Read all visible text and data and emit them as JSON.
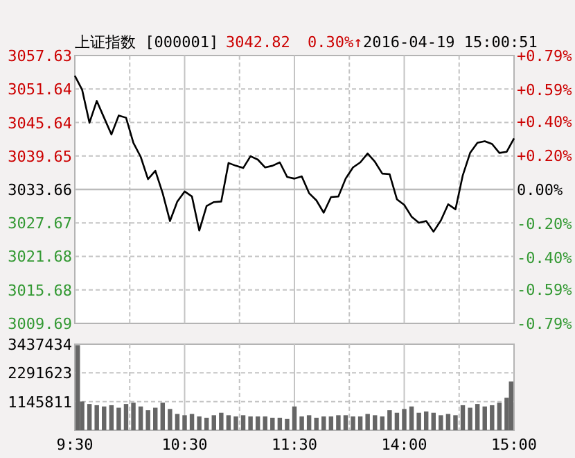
{
  "chart_data": [
    {
      "type": "line",
      "title": "上证指数 [000001]",
      "annotations": [
        "3042.82",
        "0.30%↑",
        "2016-04-19 15:00:51"
      ],
      "categories": [
        null,
        null,
        null,
        null,
        null,
        null,
        null,
        null,
        null,
        null,
        null,
        null,
        null,
        null,
        null,
        null,
        null,
        null,
        null,
        null,
        null,
        null,
        null,
        null,
        null,
        null,
        null,
        null,
        null,
        null,
        null,
        null,
        null,
        null,
        null,
        null,
        null,
        null,
        null,
        null,
        null,
        null,
        null,
        null,
        null,
        null,
        null,
        null,
        null,
        null,
        null,
        null,
        null,
        null,
        null,
        null,
        null,
        null,
        null,
        null,
        null
      ],
      "ylim": [
        3009.69,
        3057.63
      ],
      "yticks": [
        3009.69,
        3015.68,
        3021.68,
        3027.67,
        3033.66,
        3039.65,
        3045.64,
        3051.64,
        3057.63
      ],
      "y2lim": [
        -0.79,
        0.79
      ],
      "y2ticks": [
        {
          "value": -0.79,
          "label": "-0.79%"
        },
        {
          "value": -0.59,
          "label": "-0.59%"
        },
        {
          "value": -0.4,
          "label": "-0.40%"
        },
        {
          "value": -0.2,
          "label": "-0.20%"
        },
        {
          "value": 0,
          "label": "0.00%"
        },
        {
          "value": 0.2,
          "label": "+0.20%"
        },
        {
          "value": 0.4,
          "label": "+0.40%"
        },
        {
          "value": 0.59,
          "label": "+0.59%"
        },
        {
          "value": 0.79,
          "label": "+0.79%"
        }
      ],
      "ref_lines": [
        {
          "axis": "y",
          "value": 3033.66,
          "color": "#bbbbbb"
        }
      ],
      "grid": true,
      "series": [
        {
          "color": "#000000",
          "values": [
            3054.0,
            3051.5,
            3045.6,
            3049.5,
            3046.5,
            3043.5,
            3046.9,
            3046.5,
            3042.0,
            3039.5,
            3035.5,
            3037.0,
            3033.0,
            3028.0,
            3031.5,
            3033.3,
            3032.4,
            3026.3,
            3030.7,
            3031.4,
            3031.5,
            3038.4,
            3037.9,
            3037.5,
            3039.6,
            3039.0,
            3037.6,
            3037.9,
            3038.5,
            3035.9,
            3035.6,
            3036.0,
            3033.0,
            3031.7,
            3029.5,
            3032.3,
            3032.4,
            3035.6,
            3037.6,
            3038.5,
            3040.1,
            3038.6,
            3036.5,
            3036.4,
            3031.9,
            3030.9,
            3028.8,
            3027.7,
            3028.0,
            3026.1,
            3028.1,
            3031.0,
            3030.1,
            3036.2,
            3040.2,
            3042.0,
            3042.3,
            3041.8,
            3040.2,
            3040.4,
            3042.8
          ]
        }
      ]
    },
    {
      "type": "bar",
      "categories": [
        "9:30",
        null,
        null,
        null,
        null,
        null,
        null,
        null,
        null,
        null,
        null,
        null,
        null,
        null,
        null,
        "10:30",
        null,
        null,
        null,
        null,
        null,
        null,
        null,
        null,
        null,
        null,
        null,
        null,
        null,
        null,
        "11:30",
        null,
        null,
        null,
        null,
        null,
        null,
        null,
        null,
        null,
        null,
        null,
        null,
        null,
        null,
        "14:00",
        null,
        null,
        null,
        null,
        null,
        null,
        null,
        null,
        null,
        null,
        null,
        null,
        null,
        null,
        "15:00"
      ],
      "ylim": [
        0,
        3437434
      ],
      "yticks": [
        {
          "value": 0,
          "label": null
        },
        1145811,
        2291623,
        3437434
      ],
      "grid": true,
      "series": [
        {
          "color": "#666666",
          "values": [
            3400000,
            1150000,
            1050000,
            1000000,
            950000,
            1000000,
            900000,
            1050000,
            1100000,
            950000,
            800000,
            900000,
            1100000,
            850000,
            650000,
            600000,
            650000,
            550000,
            500000,
            600000,
            700000,
            600000,
            550000,
            600000,
            550000,
            550000,
            550000,
            500000,
            500000,
            450000,
            950000,
            550000,
            600000,
            500000,
            550000,
            550000,
            600000,
            600000,
            550000,
            550000,
            650000,
            600000,
            550000,
            800000,
            700000,
            850000,
            950000,
            700000,
            750000,
            700000,
            600000,
            650000,
            600000,
            1000000,
            900000,
            1050000,
            950000,
            1000000,
            1100000,
            1300000,
            1950000
          ]
        }
      ]
    }
  ]
}
